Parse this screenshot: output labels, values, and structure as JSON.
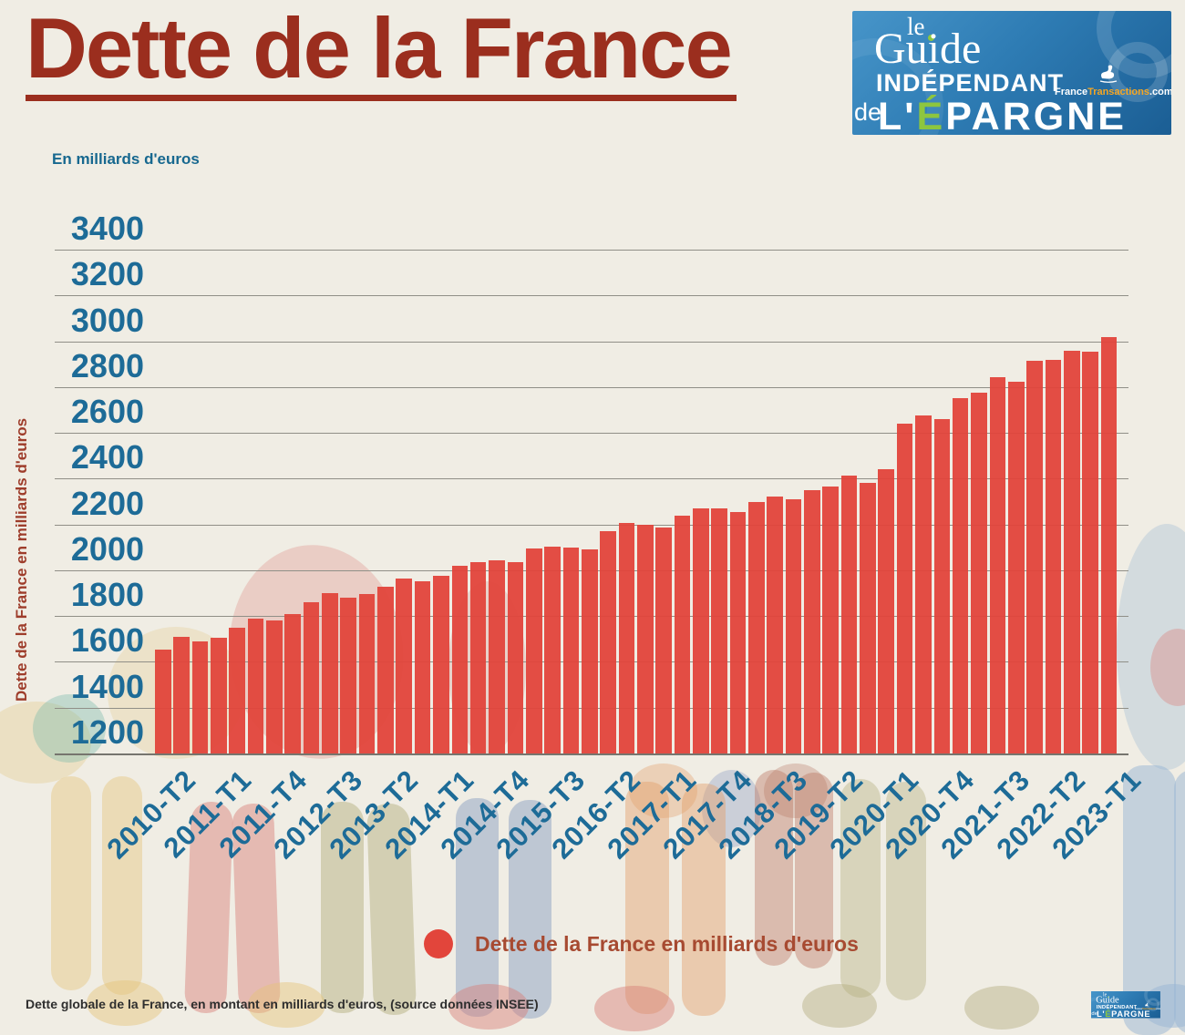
{
  "header": {
    "title": "Dette de la France",
    "subtitle": "En milliards d'euros"
  },
  "logo": {
    "le": "le",
    "guide": "Guide",
    "independant": "INDÉPENDANT",
    "de": "de",
    "epargne": "L'ÉPARGNE",
    "site_france": "France",
    "site_transactions": "Transactions",
    "site_com": ".com",
    "bg_color": "#2e7cb4",
    "accent_green": "#8dc63f",
    "accent_orange": "#f5a623"
  },
  "chart_data": {
    "type": "bar",
    "title": "Dette de la France",
    "ylabel": "Dette de la France en milliards d'euros",
    "unit": "milliards d'euros",
    "ylim": [
      1200,
      3400
    ],
    "y_ticks": [
      3400,
      3200,
      3000,
      2800,
      2600,
      2400,
      2200,
      2000,
      1800,
      1600,
      1400,
      1200
    ],
    "grid": true,
    "bar_color": "#e2453b",
    "gridline_color": "#908f87",
    "axis_text_color": "#1d6b97",
    "x_tick_labels": [
      "2010-T2",
      "2011-T1",
      "2011-T4",
      "2012-T3",
      "2013-T2",
      "2014-T1",
      "2014-T4",
      "2015-T3",
      "2016-T2",
      "2017-T1",
      "2017-T4",
      "2018-T3",
      "2019-T2",
      "2020-T1",
      "2020-T4",
      "2021-T3",
      "2022-T2",
      "2023-T1"
    ],
    "x": [
      "2010-T2",
      "2010-T3",
      "2010-T4",
      "2011-T1",
      "2011-T2",
      "2011-T3",
      "2011-T4",
      "2012-T1",
      "2012-T2",
      "2012-T3",
      "2012-T4",
      "2013-T1",
      "2013-T2",
      "2013-T3",
      "2013-T4",
      "2014-T1",
      "2014-T2",
      "2014-T3",
      "2014-T4",
      "2015-T1",
      "2015-T2",
      "2015-T3",
      "2015-T4",
      "2016-T1",
      "2016-T2",
      "2016-T3",
      "2016-T4",
      "2017-T1",
      "2017-T2",
      "2017-T3",
      "2017-T4",
      "2018-T1",
      "2018-T2",
      "2018-T3",
      "2018-T4",
      "2019-T1",
      "2019-T2",
      "2019-T3",
      "2019-T4",
      "2020-T1",
      "2020-T2",
      "2020-T3",
      "2020-T4",
      "2021-T1",
      "2021-T2",
      "2021-T3",
      "2021-T4",
      "2022-T1",
      "2022-T2",
      "2022-T3",
      "2022-T4",
      "2023-T1"
    ],
    "values": [
      1655,
      1710,
      1690,
      1705,
      1750,
      1790,
      1780,
      1810,
      1860,
      1900,
      1880,
      1895,
      1930,
      1965,
      1950,
      1975,
      2020,
      2035,
      2045,
      2035,
      2095,
      2105,
      2100,
      2090,
      2170,
      2205,
      2200,
      2185,
      2240,
      2270,
      2270,
      2255,
      2300,
      2320,
      2310,
      2350,
      2365,
      2415,
      2380,
      2440,
      2640,
      2675,
      2660,
      2750,
      2775,
      2845,
      2825,
      2915,
      2920,
      2960,
      2955,
      3020
    ]
  },
  "legend": {
    "label": "Dette de la France en milliards d'euros",
    "marker_color": "#e2453b"
  },
  "footer": {
    "source_note": "Dette globale de la France, en montant en milliards d'euros, (source données INSEE)"
  }
}
